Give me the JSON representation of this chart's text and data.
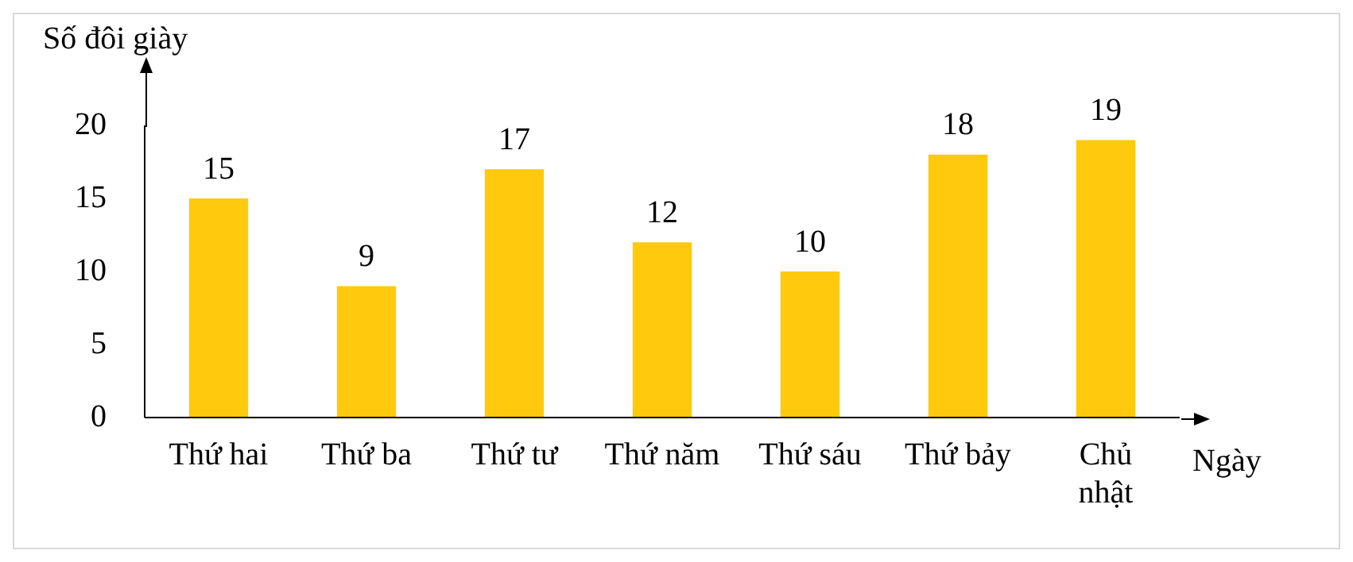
{
  "chart_data": {
    "type": "bar",
    "ylabel": "Số đôi giày",
    "xlabel": "Ngày",
    "categories": [
      "Thứ hai",
      "Thứ ba",
      "Thứ tư",
      "Thứ năm",
      "Thứ sáu",
      "Thứ bảy",
      "Chủ nhật"
    ],
    "values": [
      15,
      9,
      17,
      12,
      10,
      18,
      19
    ],
    "color": "#ffc90e",
    "ylim": [
      0,
      20
    ],
    "yticks": [
      0,
      5,
      10,
      15,
      20
    ],
    "grid": false,
    "legend": false,
    "data_labels": true
  }
}
